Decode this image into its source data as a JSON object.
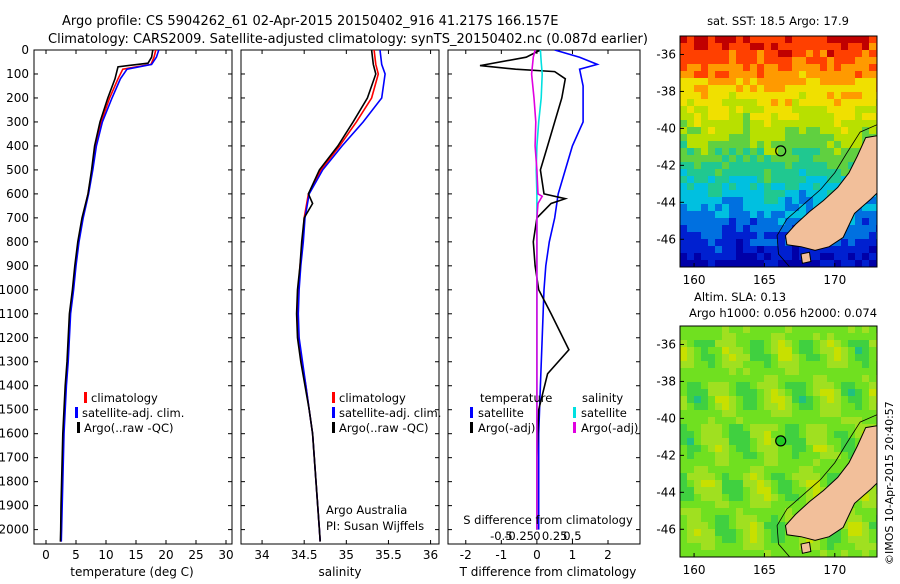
{
  "header": {
    "line1": "Argo profile: CS 5904262_61 02-Apr-2015 20150402_916 41.217S 166.157E",
    "line2": "Climatology: CARS2009. Satellite-adjusted climatology: synTS_20150402.nc (0.087d earlier)"
  },
  "credit": "©IMOS 10-Apr-2015 20:40:57",
  "chart_data": [
    {
      "type": "line",
      "id": "temperature-profile",
      "xlabel": "temperature (deg C)",
      "ylabel": "",
      "xlim": [
        -2,
        31
      ],
      "ylim": [
        2060,
        0
      ],
      "xticks": [
        0,
        5,
        10,
        15,
        20,
        25,
        30
      ],
      "yticks": [
        0,
        100,
        200,
        300,
        400,
        500,
        600,
        700,
        800,
        900,
        1000,
        1100,
        1200,
        1300,
        1400,
        1500,
        1600,
        1700,
        1800,
        1900,
        2000
      ],
      "legend": [
        "climatology",
        "satellite-adj. clim.",
        "Argo(..raw -QC)"
      ],
      "series": [
        {
          "name": "climatology",
          "color": "#ff0000",
          "points": [
            [
              18.3,
              0
            ],
            [
              18.0,
              30
            ],
            [
              17.5,
              60
            ],
            [
              12.8,
              80
            ],
            [
              12.0,
              120
            ],
            [
              10.6,
              200
            ],
            [
              9.2,
              300
            ],
            [
              8.3,
              400
            ],
            [
              7.7,
              500
            ],
            [
              7.0,
              600
            ],
            [
              6.1,
              700
            ],
            [
              5.4,
              800
            ],
            [
              4.9,
              900
            ],
            [
              4.5,
              1000
            ],
            [
              4.0,
              1100
            ],
            [
              3.8,
              1200
            ],
            [
              3.6,
              1300
            ],
            [
              3.3,
              1400
            ],
            [
              3.1,
              1500
            ],
            [
              2.9,
              1600
            ],
            [
              2.8,
              1700
            ],
            [
              2.7,
              1800
            ],
            [
              2.6,
              1900
            ],
            [
              2.55,
              2000
            ],
            [
              2.5,
              2050
            ]
          ]
        },
        {
          "name": "satellite-adj. clim.",
          "color": "#0000ff",
          "points": [
            [
              18.8,
              0
            ],
            [
              18.4,
              30
            ],
            [
              17.6,
              60
            ],
            [
              13.5,
              80
            ],
            [
              12.4,
              120
            ],
            [
              11.0,
              200
            ],
            [
              9.4,
              300
            ],
            [
              8.4,
              400
            ],
            [
              7.8,
              500
            ],
            [
              7.1,
              600
            ],
            [
              6.2,
              700
            ],
            [
              5.5,
              800
            ],
            [
              5.0,
              900
            ],
            [
              4.6,
              1000
            ],
            [
              4.1,
              1100
            ],
            [
              3.9,
              1200
            ],
            [
              3.7,
              1300
            ],
            [
              3.4,
              1400
            ],
            [
              3.2,
              1500
            ],
            [
              3.0,
              1600
            ],
            [
              2.9,
              1700
            ],
            [
              2.8,
              1800
            ],
            [
              2.7,
              1900
            ],
            [
              2.6,
              2000
            ],
            [
              2.55,
              2050
            ]
          ]
        },
        {
          "name": "Argo(..raw -QC)",
          "color": "#000000",
          "points": [
            [
              17.8,
              0
            ],
            [
              17.6,
              30
            ],
            [
              17.0,
              55
            ],
            [
              12.0,
              70
            ],
            [
              11.5,
              120
            ],
            [
              10.3,
              200
            ],
            [
              9.0,
              300
            ],
            [
              8.1,
              400
            ],
            [
              7.6,
              500
            ],
            [
              7.0,
              600
            ],
            [
              6.0,
              700
            ],
            [
              5.3,
              800
            ],
            [
              4.8,
              900
            ],
            [
              4.4,
              1000
            ],
            [
              3.9,
              1100
            ],
            [
              3.7,
              1200
            ],
            [
              3.5,
              1300
            ],
            [
              3.2,
              1400
            ],
            [
              3.0,
              1500
            ],
            [
              2.8,
              1600
            ],
            [
              2.7,
              1700
            ],
            [
              2.6,
              1800
            ],
            [
              2.5,
              1900
            ],
            [
              2.45,
              2000
            ],
            [
              2.4,
              2050
            ]
          ]
        }
      ]
    },
    {
      "type": "line",
      "id": "salinity-profile",
      "xlabel": "salinity",
      "xlim": [
        33.75,
        36.1
      ],
      "ylim": [
        2060,
        0
      ],
      "xticks": [
        34,
        34.5,
        35,
        35.5,
        36
      ],
      "legend": [
        "climatology",
        "satellite-adj. clim.",
        "Argo(..raw -QC)"
      ],
      "annotation": [
        "Argo Australia",
        "PI: Susan Wijffels"
      ],
      "series": [
        {
          "name": "climatology",
          "color": "#ff0000",
          "points": [
            [
              35.33,
              0
            ],
            [
              35.35,
              60
            ],
            [
              35.38,
              100
            ],
            [
              35.3,
              200
            ],
            [
              35.12,
              300
            ],
            [
              34.92,
              400
            ],
            [
              34.7,
              500
            ],
            [
              34.55,
              600
            ],
            [
              34.5,
              700
            ],
            [
              34.48,
              800
            ],
            [
              34.45,
              900
            ],
            [
              34.43,
              1000
            ],
            [
              34.42,
              1100
            ],
            [
              34.43,
              1200
            ],
            [
              34.47,
              1300
            ],
            [
              34.52,
              1400
            ],
            [
              34.56,
              1500
            ],
            [
              34.6,
              1600
            ],
            [
              34.62,
              1700
            ],
            [
              34.64,
              1800
            ],
            [
              34.66,
              1900
            ],
            [
              34.68,
              2000
            ],
            [
              34.69,
              2050
            ]
          ]
        },
        {
          "name": "satellite-adj. clim.",
          "color": "#0000ff",
          "points": [
            [
              35.4,
              0
            ],
            [
              35.42,
              60
            ],
            [
              35.46,
              100
            ],
            [
              35.42,
              200
            ],
            [
              35.2,
              300
            ],
            [
              34.95,
              400
            ],
            [
              34.72,
              500
            ],
            [
              34.56,
              600
            ],
            [
              34.51,
              700
            ],
            [
              34.49,
              800
            ],
            [
              34.46,
              900
            ],
            [
              34.44,
              1000
            ],
            [
              34.43,
              1100
            ],
            [
              34.44,
              1200
            ],
            [
              34.48,
              1300
            ],
            [
              34.52,
              1400
            ],
            [
              34.56,
              1500
            ],
            [
              34.6,
              1600
            ],
            [
              34.62,
              1700
            ],
            [
              34.64,
              1800
            ],
            [
              34.66,
              1900
            ],
            [
              34.68,
              2000
            ],
            [
              34.69,
              2050
            ]
          ]
        },
        {
          "name": "Argo(..raw -QC)",
          "color": "#000000",
          "points": [
            [
              35.3,
              0
            ],
            [
              35.32,
              60
            ],
            [
              35.35,
              100
            ],
            [
              35.25,
              200
            ],
            [
              35.08,
              300
            ],
            [
              34.9,
              400
            ],
            [
              34.68,
              500
            ],
            [
              34.55,
              600
            ],
            [
              34.6,
              640
            ],
            [
              34.5,
              700
            ],
            [
              34.47,
              800
            ],
            [
              34.45,
              900
            ],
            [
              34.42,
              1000
            ],
            [
              34.41,
              1100
            ],
            [
              34.42,
              1200
            ],
            [
              34.46,
              1300
            ],
            [
              34.51,
              1400
            ],
            [
              34.56,
              1500
            ],
            [
              34.6,
              1600
            ],
            [
              34.62,
              1700
            ],
            [
              34.64,
              1800
            ],
            [
              34.66,
              1900
            ],
            [
              34.68,
              2000
            ],
            [
              34.69,
              2050
            ]
          ]
        }
      ]
    },
    {
      "type": "line",
      "id": "difference-profile",
      "xlabel": "T difference from climatology",
      "xlim": [
        -2.5,
        2.9
      ],
      "ylim": [
        2060,
        0
      ],
      "xticks": [
        -2,
        -1,
        0,
        1,
        2
      ],
      "top_axis_label": "S difference from climatology",
      "top_ticks": [
        "-0.5",
        "-0.25",
        "0",
        "0.25",
        "0.5"
      ],
      "legend": {
        "temperature": {
          "title": "temperature",
          "items": [
            "satellite",
            "Argo(-adj)"
          ]
        },
        "salinity": {
          "title": "salinity",
          "items": [
            "satellite",
            "Argo(-adj)"
          ]
        }
      },
      "series": [
        {
          "name": "satellite",
          "group": "temperature",
          "color": "#0000ff",
          "points": [
            [
              0.5,
              0
            ],
            [
              1.2,
              30
            ],
            [
              1.7,
              60
            ],
            [
              1.2,
              80
            ],
            [
              1.3,
              150
            ],
            [
              1.3,
              300
            ],
            [
              1.0,
              400
            ],
            [
              0.8,
              500
            ],
            [
              0.6,
              600
            ],
            [
              0.5,
              700
            ],
            [
              0.35,
              800
            ],
            [
              0.25,
              900
            ],
            [
              0.2,
              1000
            ],
            [
              0.15,
              1200
            ],
            [
              0.1,
              1400
            ],
            [
              0.05,
              1600
            ],
            [
              0.05,
              2000
            ]
          ]
        },
        {
          "name": "Argo(-adj)",
          "group": "temperature",
          "color": "#000000",
          "points": [
            [
              0.1,
              0
            ],
            [
              -0.3,
              30
            ],
            [
              -1.6,
              65
            ],
            [
              -0.6,
              80
            ],
            [
              0.5,
              90
            ],
            [
              0.8,
              120
            ],
            [
              0.7,
              200
            ],
            [
              0.5,
              300
            ],
            [
              0.3,
              400
            ],
            [
              0.1,
              500
            ],
            [
              0.2,
              600
            ],
            [
              0.8,
              620
            ],
            [
              0.4,
              640
            ],
            [
              0.0,
              700
            ],
            [
              -0.1,
              800
            ],
            [
              -0.05,
              900
            ],
            [
              0.05,
              1000
            ],
            [
              0.4,
              1100
            ],
            [
              0.9,
              1250
            ],
            [
              0.3,
              1350
            ],
            [
              0.05,
              1500
            ],
            [
              0.0,
              1700
            ],
            [
              0.0,
              2000
            ]
          ]
        },
        {
          "name": "satellite",
          "group": "salinity",
          "color": "#00e0e0",
          "points": [
            [
              0.1,
              0
            ],
            [
              0.12,
              50
            ],
            [
              0.15,
              100
            ],
            [
              0.12,
              200
            ],
            [
              0.05,
              300
            ],
            [
              0.0,
              400
            ],
            [
              -0.02,
              500
            ],
            [
              0.0,
              600
            ],
            [
              0.0,
              800
            ],
            [
              0.0,
              1000
            ],
            [
              0.0,
              1500
            ],
            [
              0.0,
              2000
            ]
          ]
        },
        {
          "name": "Argo(-adj)",
          "group": "salinity",
          "color": "#e000e0",
          "points": [
            [
              -0.05,
              0
            ],
            [
              -0.1,
              30
            ],
            [
              -0.15,
              100
            ],
            [
              -0.08,
              200
            ],
            [
              -0.03,
              300
            ],
            [
              -0.05,
              400
            ],
            [
              0.0,
              500
            ],
            [
              0.03,
              600
            ],
            [
              0.15,
              610
            ],
            [
              0.03,
              640
            ],
            [
              0.0,
              700
            ],
            [
              0.0,
              2000
            ]
          ]
        }
      ]
    },
    {
      "type": "heatmap",
      "id": "sst-map",
      "title": "sat. SST: 18.5 Argo: 17.9",
      "xlim": [
        159,
        173
      ],
      "ylim": [
        -47.5,
        -35
      ],
      "xticks": [
        160,
        165,
        170
      ],
      "yticks": [
        -36,
        -38,
        -40,
        -42,
        -44,
        -46
      ],
      "argo_position": {
        "lon": 166.157,
        "lat": -41.217
      }
    },
    {
      "type": "heatmap",
      "id": "sla-map",
      "title": "Altim. SLA: 0.13",
      "subtitle": "Argo h1000: 0.056 h2000: 0.074",
      "xlim": [
        159,
        173
      ],
      "ylim": [
        -47.5,
        -35
      ],
      "xticks": [
        160,
        165,
        170
      ],
      "yticks": [
        -36,
        -38,
        -40,
        -42,
        -44,
        -46
      ],
      "argo_position": {
        "lon": 166.157,
        "lat": -41.217
      }
    }
  ]
}
